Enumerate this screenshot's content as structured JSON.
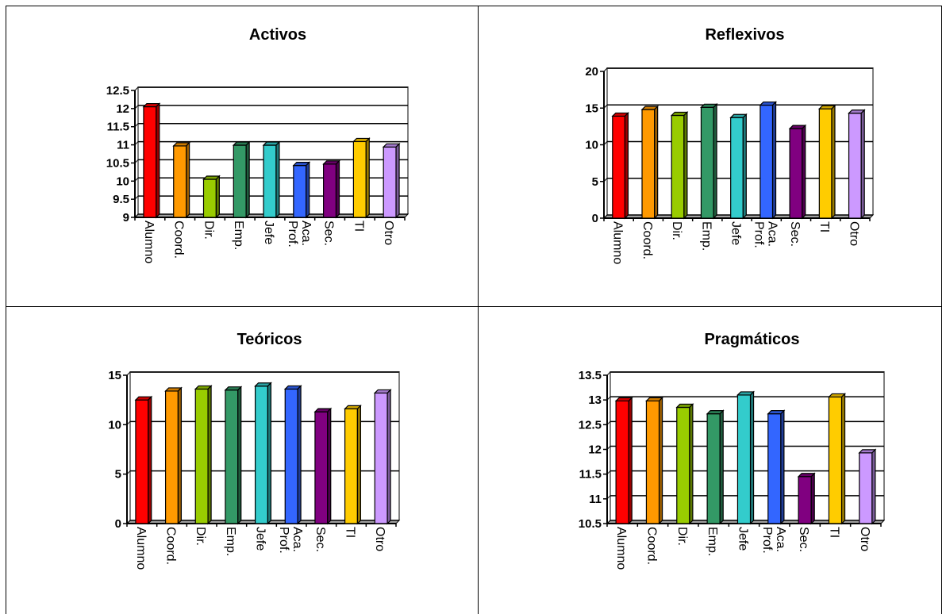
{
  "colors": {
    "bars": [
      "#ff0000",
      "#ff9900",
      "#99cc00",
      "#339966",
      "#33cccc",
      "#3366ff",
      "#800080",
      "#ffcc00",
      "#cc99ff"
    ],
    "axis": "#000000",
    "floor": "#808080",
    "background": "#ffffff"
  },
  "chart_data": [
    {
      "type": "bar",
      "title": "Activos",
      "categories": [
        "Alumno",
        "Coord.",
        "Dir.",
        "Emp.",
        "Jefe",
        "Prof.\nAca.",
        "Sec.",
        "TI",
        "Otro"
      ],
      "values": [
        12.05,
        10.97,
        10.05,
        10.99,
        10.99,
        10.43,
        10.47,
        11.09,
        10.94
      ],
      "ylim": [
        9,
        12.5
      ],
      "yticks": [
        "9",
        "9.5",
        "10",
        "10.5",
        "11",
        "11.5",
        "12",
        "12.5"
      ],
      "xlabel": "",
      "ylabel": "",
      "grid": true
    },
    {
      "type": "bar",
      "title": "Reflexivos",
      "categories": [
        "Alumno",
        "Coord.",
        "Dir.",
        "Emp.",
        "Jefe",
        "Prof.\nAca.",
        "Sec.",
        "TI",
        "Otro"
      ],
      "values": [
        13.9,
        14.8,
        14.0,
        15.1,
        13.7,
        15.4,
        12.2,
        14.9,
        14.3
      ],
      "ylim": [
        0,
        20
      ],
      "yticks": [
        "0",
        "5",
        "10",
        "15",
        "20"
      ],
      "xlabel": "",
      "ylabel": "",
      "grid": true
    },
    {
      "type": "bar",
      "title": "Teóricos",
      "categories": [
        "Alumno",
        "Coord.",
        "Dir.",
        "Emp.",
        "Jefe",
        "Prof.\nAca.",
        "Sec.",
        "TI",
        "Otro"
      ],
      "values": [
        12.5,
        13.4,
        13.6,
        13.5,
        13.9,
        13.6,
        11.3,
        11.6,
        13.2
      ],
      "ylim": [
        0,
        15
      ],
      "yticks": [
        "0",
        "5",
        "10",
        "15"
      ],
      "xlabel": "",
      "ylabel": "",
      "grid": true
    },
    {
      "type": "bar",
      "title": "Pragmáticos",
      "categories": [
        "Alumno",
        "Coord.",
        "Dir.",
        "Emp.",
        "Jefe",
        "Prof.\nAca.",
        "Sec.",
        "TI",
        "Otro"
      ],
      "values": [
        12.98,
        12.98,
        12.85,
        12.72,
        13.1,
        12.72,
        11.45,
        13.06,
        11.93
      ],
      "ylim": [
        10.5,
        13.5
      ],
      "yticks": [
        "10.5",
        "11",
        "11.5",
        "12",
        "12.5",
        "13",
        "13.5"
      ],
      "xlabel": "",
      "ylabel": "",
      "grid": true
    }
  ]
}
